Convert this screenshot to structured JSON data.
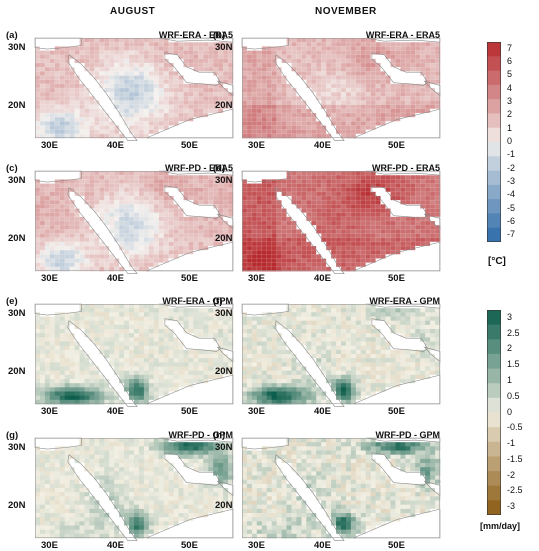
{
  "column_titles": [
    "AUGUST",
    "NOVEMBER"
  ],
  "colors": {
    "temp_cold": "#2c6aa8",
    "temp_mid": "#f4f1ee",
    "temp_warm": "#b72a2e",
    "precip_dry": "#8a5a12",
    "precip_mid": "#f3f0e4",
    "precip_wet": "#0d5e4c",
    "land_grey": "#c9c9c9",
    "sea": "#ffffff"
  },
  "chart_data": [
    {
      "type": "heatmap",
      "panel": "(a)",
      "title": "WRF-ERA - ERA5",
      "variable": "temperature",
      "month": "AUGUST",
      "x_ticks": [
        "30E",
        "40E",
        "50E"
      ],
      "y_ticks": [
        "30N",
        "20N"
      ],
      "pattern": {
        "base": 1.6,
        "south": -0.2,
        "red_sea_belt": -3.2,
        "west": 0.0,
        "gulf": 0.4,
        "southwest_patch": -3.0
      }
    },
    {
      "type": "heatmap",
      "panel": "(b)",
      "title": "WRF-ERA - ERA5",
      "variable": "temperature",
      "month": "NOVEMBER",
      "x_ticks": [
        "30E",
        "40E",
        "50E"
      ],
      "y_ticks": [
        "30N",
        "20N"
      ],
      "pattern": {
        "base": 1.8,
        "south": 0.8,
        "red_sea_belt": -1.0,
        "west": 0.6,
        "gulf": 1.2,
        "southwest_patch": 0.5
      }
    },
    {
      "type": "heatmap",
      "panel": "(c)",
      "title": "WRF-PD - ERA5",
      "variable": "temperature",
      "month": "AUGUST",
      "x_ticks": [
        "30E",
        "40E",
        "50E"
      ],
      "y_ticks": [
        "30N",
        "20N"
      ],
      "pattern": {
        "base": 1.8,
        "south": -0.2,
        "red_sea_belt": -3.0,
        "west": 0.2,
        "gulf": 0.8,
        "southwest_patch": -3.2
      }
    },
    {
      "type": "heatmap",
      "panel": "(d)",
      "title": "WRF-PD - ERA5",
      "variable": "temperature",
      "month": "NOVEMBER",
      "x_ticks": [
        "30E",
        "40E",
        "50E"
      ],
      "y_ticks": [
        "30N",
        "20N"
      ],
      "pattern": {
        "base": 4.2,
        "south": 0.6,
        "red_sea_belt": 0.6,
        "west": 1.0,
        "gulf": 2.0,
        "southwest_patch": 1.5
      }
    },
    {
      "type": "heatmap",
      "panel": "(e)",
      "title": "WRF-ERA - GPM",
      "variable": "precipitation",
      "month": "AUGUST",
      "x_ticks": [
        "30E",
        "40E",
        "50E"
      ],
      "y_ticks": [
        "30N",
        "20N"
      ],
      "pattern": {
        "base": 0.3,
        "sw_band": 2.8,
        "yemen": 2.6,
        "iran": 0.2,
        "coast": 0.2
      }
    },
    {
      "type": "heatmap",
      "panel": "(f)",
      "title": "WRF-ERA - GPM",
      "variable": "precipitation",
      "month": "NOVEMBER",
      "x_ticks": [
        "30E",
        "40E",
        "50E"
      ],
      "y_ticks": [
        "30N",
        "20N"
      ],
      "pattern": {
        "base": 0.4,
        "sw_band": 3.0,
        "yemen": 2.8,
        "iran": 0.6,
        "coast": 0.6
      }
    },
    {
      "type": "heatmap",
      "panel": "(g)",
      "title": "WRF-PD - GPM",
      "variable": "precipitation",
      "month": "AUGUST",
      "x_ticks": [
        "30E",
        "40E",
        "50E"
      ],
      "y_ticks": [
        "30N",
        "20N"
      ],
      "pattern": {
        "base": 0.3,
        "sw_band": 0.3,
        "yemen": 2.4,
        "iran": 2.8,
        "coast": 1.2
      }
    },
    {
      "type": "heatmap",
      "panel": "(h)",
      "title": "WRF-PD - GPM",
      "variable": "precipitation",
      "month": "NOVEMBER",
      "x_ticks": [
        "30E",
        "40E",
        "50E"
      ],
      "y_ticks": [
        "30N",
        "20N"
      ],
      "pattern": {
        "base": 0.5,
        "sw_band": 0.6,
        "yemen": 2.6,
        "iran": 2.4,
        "coast": 1.0
      }
    }
  ],
  "colorbars": [
    {
      "variable": "temperature",
      "min": -7,
      "max": 7,
      "ticks": [
        "7",
        "6",
        "5",
        "4",
        "3",
        "2",
        "1",
        "0",
        "-1",
        "-2",
        "-3",
        "-4",
        "-5",
        "-6",
        "-7"
      ],
      "unit": "[°C]"
    },
    {
      "variable": "precipitation",
      "min": -3,
      "max": 3,
      "ticks": [
        "3",
        "2.5",
        "2",
        "1.5",
        "1",
        "0.5",
        "0",
        "-0.5",
        "-1",
        "-1.5",
        "-2",
        "-2.5",
        "-3"
      ],
      "unit": "[mm/day]"
    }
  ]
}
